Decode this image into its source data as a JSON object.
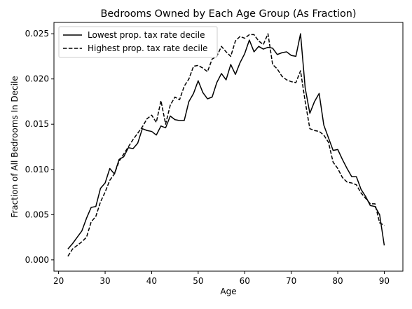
{
  "chart_data": {
    "type": "line",
    "title": "Bedrooms Owned by Each Age Group (As Fraction)",
    "xlabel": "Age",
    "ylabel": "Fraction of All Bedrooms In Decile",
    "xlim": [
      19,
      94
    ],
    "ylim": [
      -0.00125,
      0.02625
    ],
    "xticks": [
      20,
      30,
      40,
      50,
      60,
      70,
      80,
      90
    ],
    "yticks": [
      0.0,
      0.005,
      0.01,
      0.015,
      0.02,
      0.025
    ],
    "xtick_labels": [
      "20",
      "30",
      "40",
      "50",
      "60",
      "70",
      "80",
      "90"
    ],
    "ytick_labels": [
      "0.000",
      "0.005",
      "0.010",
      "0.015",
      "0.020",
      "0.025"
    ],
    "grid": false,
    "legend_position": "top-left",
    "series": [
      {
        "name": "Lowest prop. tax rate decile",
        "style": "solid",
        "color": "#000000",
        "x": [
          22,
          23,
          24,
          25,
          26,
          27,
          28,
          29,
          30,
          31,
          32,
          33,
          34,
          35,
          36,
          37,
          38,
          39,
          40,
          41,
          42,
          43,
          44,
          45,
          46,
          47,
          48,
          49,
          50,
          51,
          52,
          53,
          54,
          55,
          56,
          57,
          58,
          59,
          60,
          61,
          62,
          63,
          64,
          65,
          66,
          67,
          68,
          69,
          70,
          71,
          72,
          73,
          74,
          75,
          76,
          77,
          78,
          79,
          80,
          81,
          82,
          83,
          84,
          85,
          86,
          87,
          88,
          89,
          90
        ],
        "y": [
          0.0012,
          0.0018,
          0.0025,
          0.0032,
          0.0046,
          0.0058,
          0.0059,
          0.0079,
          0.0085,
          0.0101,
          0.0095,
          0.0111,
          0.0114,
          0.0124,
          0.0123,
          0.0129,
          0.0145,
          0.0143,
          0.0142,
          0.0138,
          0.0148,
          0.0146,
          0.0159,
          0.0155,
          0.0154,
          0.0154,
          0.0175,
          0.0184,
          0.0198,
          0.0185,
          0.0178,
          0.018,
          0.0196,
          0.0206,
          0.0199,
          0.0216,
          0.0205,
          0.0218,
          0.0228,
          0.0243,
          0.023,
          0.0236,
          0.0233,
          0.0235,
          0.0234,
          0.0227,
          0.0229,
          0.023,
          0.0226,
          0.0225,
          0.025,
          0.019,
          0.0162,
          0.0175,
          0.0184,
          0.0149,
          0.0135,
          0.0121,
          0.0122,
          0.0111,
          0.0101,
          0.0092,
          0.0092,
          0.0078,
          0.007,
          0.006,
          0.0059,
          0.005,
          0.0016
        ]
      },
      {
        "name": "Highest prop. tax rate decile",
        "style": "dashed",
        "color": "#000000",
        "x": [
          22,
          23,
          24,
          25,
          26,
          27,
          28,
          29,
          30,
          31,
          32,
          33,
          34,
          35,
          36,
          37,
          38,
          39,
          40,
          41,
          42,
          43,
          44,
          45,
          46,
          47,
          48,
          49,
          50,
          51,
          52,
          53,
          54,
          55,
          56,
          57,
          58,
          59,
          60,
          61,
          62,
          63,
          64,
          65,
          66,
          67,
          68,
          69,
          70,
          71,
          72,
          73,
          74,
          75,
          76,
          77,
          78,
          79,
          80,
          81,
          82,
          83,
          84,
          85,
          86,
          87,
          88,
          89,
          90
        ],
        "y": [
          0.0004,
          0.0012,
          0.0016,
          0.002,
          0.0025,
          0.0042,
          0.0048,
          0.0064,
          0.0075,
          0.0088,
          0.0095,
          0.0109,
          0.0117,
          0.0125,
          0.0133,
          0.014,
          0.0147,
          0.0156,
          0.016,
          0.0152,
          0.0176,
          0.015,
          0.0171,
          0.018,
          0.0177,
          0.0192,
          0.02,
          0.0214,
          0.0215,
          0.0212,
          0.0208,
          0.0222,
          0.0225,
          0.0236,
          0.023,
          0.0225,
          0.0242,
          0.0247,
          0.0245,
          0.0249,
          0.0249,
          0.0242,
          0.0238,
          0.025,
          0.0216,
          0.0211,
          0.0203,
          0.0199,
          0.0197,
          0.0196,
          0.0209,
          0.0175,
          0.0145,
          0.0143,
          0.0142,
          0.0138,
          0.013,
          0.0108,
          0.0101,
          0.0091,
          0.0086,
          0.0085,
          0.0083,
          0.0074,
          0.0068,
          0.0062,
          0.0062,
          0.0041,
          0.0038
        ]
      }
    ]
  }
}
